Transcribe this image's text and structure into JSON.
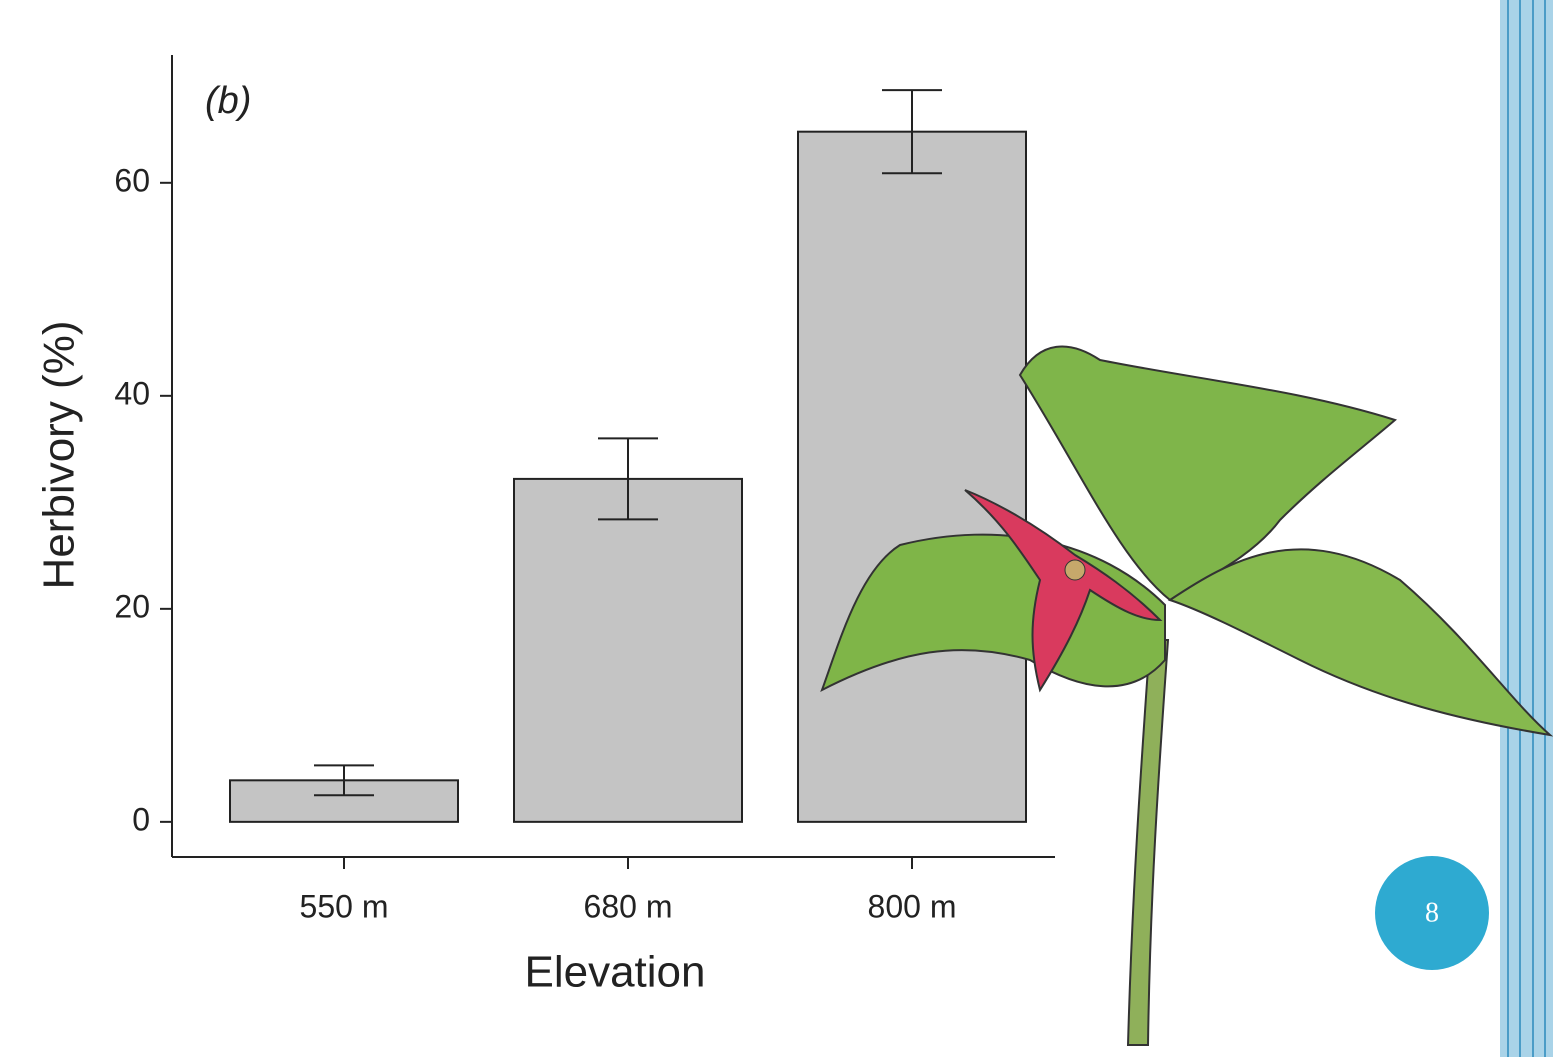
{
  "chart_data": {
    "type": "bar",
    "panel_label": "(b)",
    "y_label": "Herbivory (%)",
    "x_label": "Elevation",
    "categories": [
      "550 m",
      "680 m",
      "800 m"
    ],
    "values": [
      3.9,
      32.2,
      64.8
    ],
    "errors": [
      1.4,
      3.8,
      3.9
    ],
    "color": "#c4c4c4",
    "ylim": [
      -3.3,
      72
    ],
    "yticks": [
      0,
      20,
      40,
      60
    ],
    "grid": false
  },
  "page_number": "8"
}
